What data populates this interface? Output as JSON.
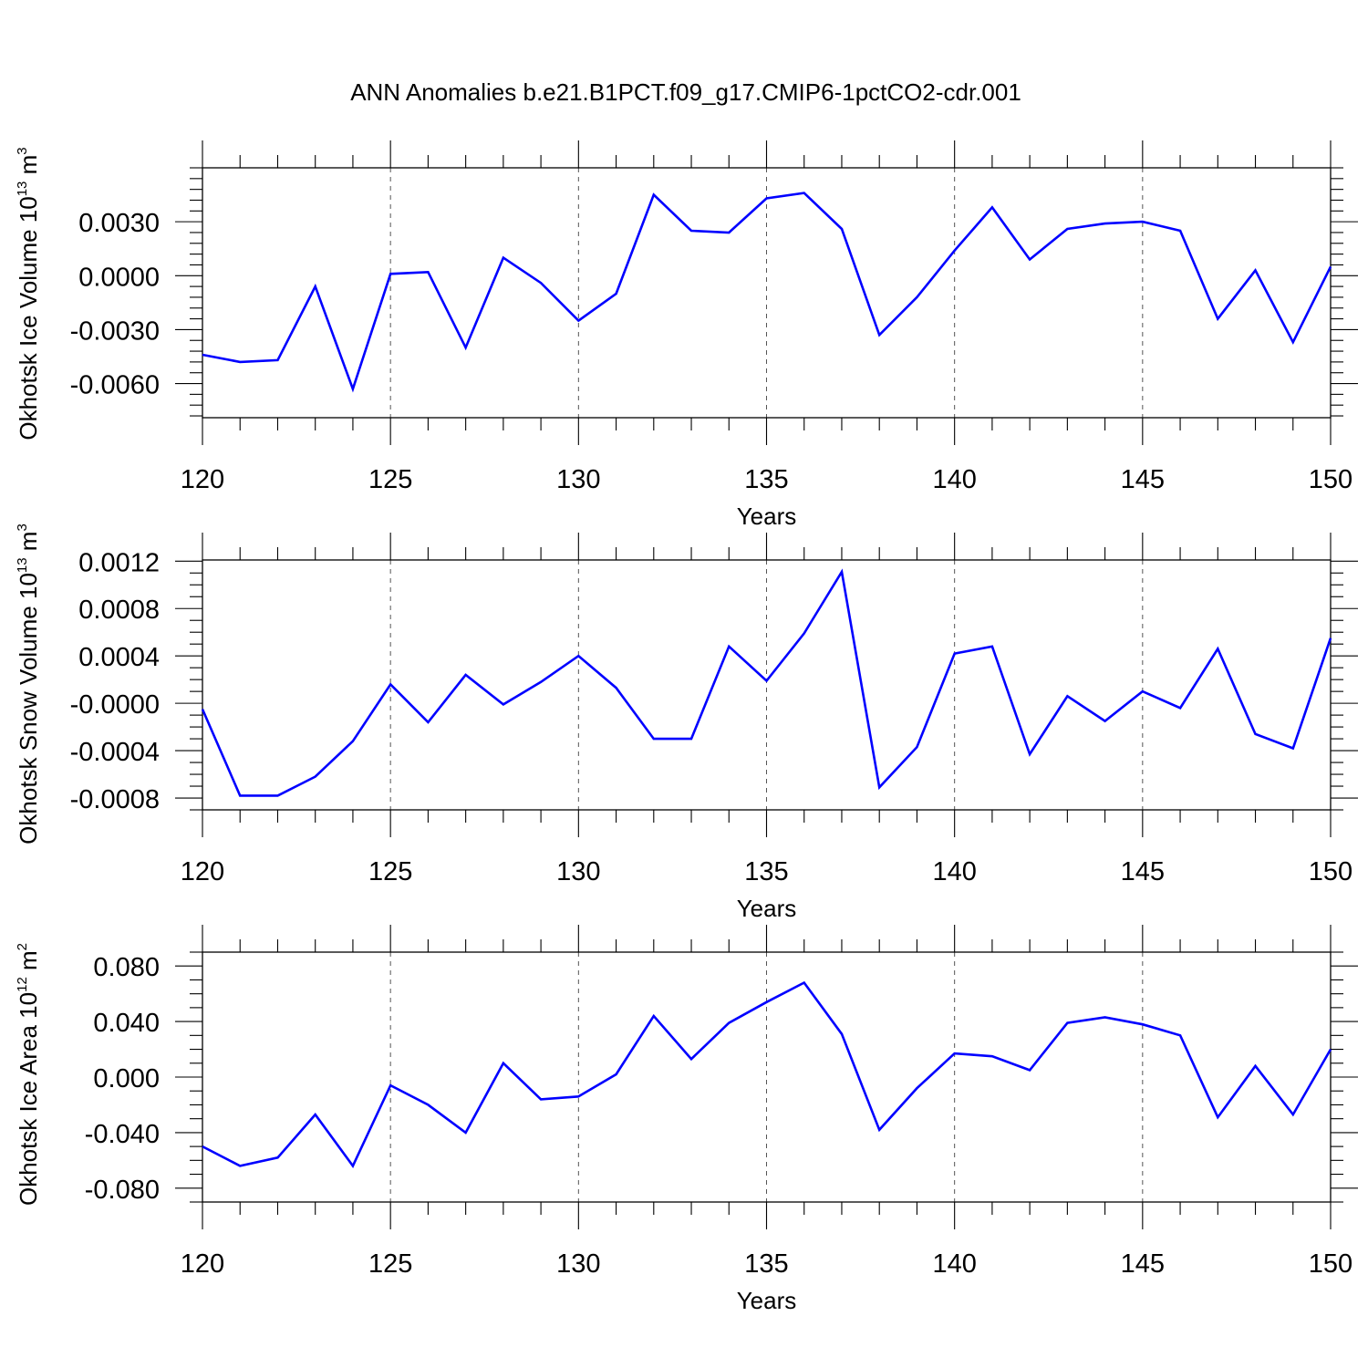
{
  "title": "ANN Anomalies b.e21.B1PCT.f09_g17.CMIP6-1pctCO2-cdr.001",
  "line_color": "#0000ff",
  "chart_data": [
    {
      "type": "line",
      "ylabel": {
        "text": "Okhotsk Ice Volume 10",
        "exp": "13",
        "unit": " m",
        "unit_exp": "3"
      },
      "xlabel": "Years",
      "xlim": [
        120,
        150
      ],
      "ylim": [
        -0.0079,
        0.006
      ],
      "x_ticks": [
        120,
        125,
        130,
        135,
        140,
        145,
        150
      ],
      "y_ticks": [
        {
          "value": 0.003,
          "label": "0.0030"
        },
        {
          "value": 0.0,
          "label": "0.0000"
        },
        {
          "value": -0.003,
          "label": "-0.0030"
        },
        {
          "value": -0.006,
          "label": "-0.0060"
        }
      ],
      "y_minor_step": 0.0006,
      "x": [
        120,
        121,
        122,
        123,
        124,
        125,
        126,
        127,
        128,
        129,
        130,
        131,
        132,
        133,
        134,
        135,
        136,
        137,
        138,
        139,
        140,
        141,
        142,
        143,
        144,
        145,
        146,
        147,
        148,
        149,
        150
      ],
      "values": [
        -0.0044,
        -0.0048,
        -0.0047,
        -0.0006,
        -0.0063,
        0.0001,
        0.0002,
        -0.004,
        0.001,
        -0.0004,
        -0.0025,
        -0.001,
        0.0045,
        0.0025,
        0.0024,
        0.0043,
        0.0046,
        0.0026,
        -0.0033,
        -0.0012,
        0.0014,
        0.0038,
        0.0009,
        0.0026,
        0.0029,
        0.003,
        0.0025,
        -0.0024,
        0.0003,
        -0.0037,
        0.0005
      ]
    },
    {
      "type": "line",
      "ylabel": {
        "text": "Okhotsk Snow Volume 10",
        "exp": "13",
        "unit": " m",
        "unit_exp": "3"
      },
      "xlabel": "Years",
      "xlim": [
        120,
        150
      ],
      "ylim": [
        -0.0009,
        0.00121
      ],
      "x_ticks": [
        120,
        125,
        130,
        135,
        140,
        145,
        150
      ],
      "y_ticks": [
        {
          "value": 0.0012,
          "label": "0.0012"
        },
        {
          "value": 0.0008,
          "label": "0.0008"
        },
        {
          "value": 0.0004,
          "label": "0.0004"
        },
        {
          "value": 0.0,
          "label": "-0.0000"
        },
        {
          "value": -0.0004,
          "label": "-0.0004"
        },
        {
          "value": -0.0008,
          "label": "-0.0008"
        }
      ],
      "y_minor_step": 0.0001,
      "x": [
        120,
        121,
        122,
        123,
        124,
        125,
        126,
        127,
        128,
        129,
        130,
        131,
        132,
        133,
        134,
        135,
        136,
        137,
        138,
        139,
        140,
        141,
        142,
        143,
        144,
        145,
        146,
        147,
        148,
        149,
        150
      ],
      "values": [
        -5e-05,
        -0.00078,
        -0.00078,
        -0.00062,
        -0.00032,
        0.00016,
        -0.00016,
        0.00024,
        -1e-05,
        0.00018,
        0.0004,
        0.00013,
        -0.0003,
        -0.0003,
        0.00048,
        0.00019,
        0.00059,
        0.00111,
        -0.00071,
        -0.00037,
        0.00042,
        0.00048,
        -0.00043,
        6e-05,
        -0.00015,
        0.0001,
        -4e-05,
        0.00046,
        -0.00026,
        -0.00038,
        0.00055
      ]
    },
    {
      "type": "line",
      "ylabel": {
        "text": "Okhotsk Ice Area 10",
        "exp": "12",
        "unit": " m",
        "unit_exp": "2"
      },
      "xlabel": "Years",
      "xlim": [
        120,
        150
      ],
      "ylim": [
        -0.09,
        0.09
      ],
      "x_ticks": [
        120,
        125,
        130,
        135,
        140,
        145,
        150
      ],
      "y_ticks": [
        {
          "value": 0.08,
          "label": "0.080"
        },
        {
          "value": 0.04,
          "label": "0.040"
        },
        {
          "value": 0.0,
          "label": "0.000"
        },
        {
          "value": -0.04,
          "label": "-0.040"
        },
        {
          "value": -0.08,
          "label": "-0.080"
        }
      ],
      "y_minor_step": 0.01,
      "x": [
        120,
        121,
        122,
        123,
        124,
        125,
        126,
        127,
        128,
        129,
        130,
        131,
        132,
        133,
        134,
        135,
        136,
        137,
        138,
        139,
        140,
        141,
        142,
        143,
        144,
        145,
        146,
        147,
        148,
        149,
        150
      ],
      "values": [
        -0.05,
        -0.064,
        -0.058,
        -0.027,
        -0.064,
        -0.006,
        -0.02,
        -0.04,
        0.01,
        -0.016,
        -0.014,
        0.002,
        0.044,
        0.013,
        0.039,
        0.054,
        0.068,
        0.031,
        -0.038,
        -0.008,
        0.017,
        0.015,
        0.005,
        0.039,
        0.043,
        0.038,
        0.03,
        -0.029,
        0.008,
        -0.027,
        0.02
      ]
    }
  ]
}
